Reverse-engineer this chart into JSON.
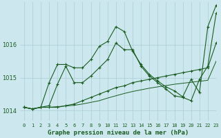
{
  "title": "Graphe pression niveau de la mer (hPa)",
  "background_color": "#cce8ee",
  "grid_color": "#aaccd4",
  "line_color": "#1a5c20",
  "xlim": [
    -0.5,
    23
  ],
  "ylim": [
    1013.7,
    1017.3
  ],
  "yticks": [
    1014,
    1015,
    1016
  ],
  "xtick_labels": [
    "0",
    "1",
    "2",
    "3",
    "4",
    "5",
    "6",
    "7",
    "8",
    "9",
    "10",
    "11",
    "12",
    "13",
    "14",
    "15",
    "16",
    "17",
    "18",
    "19",
    "20",
    "21",
    "22",
    "23"
  ],
  "series": [
    {
      "y": [
        1014.1,
        1014.05,
        1014.1,
        1014.15,
        1014.8,
        1015.35,
        1014.85,
        1014.85,
        1015.05,
        1015.3,
        1015.55,
        1016.05,
        1015.85,
        1015.85,
        1015.35,
        1015.05,
        1014.85,
        1014.65,
        1014.45,
        1014.4,
        1014.3,
        1014.95,
        1015.35,
        1016.95
      ],
      "marker": true,
      "linewidth": 0.8
    },
    {
      "y": [
        1014.1,
        1014.05,
        1014.1,
        1014.1,
        1014.1,
        1014.15,
        1014.2,
        1014.3,
        1014.4,
        1014.5,
        1014.6,
        1014.7,
        1014.75,
        1014.85,
        1014.9,
        1014.95,
        1015.0,
        1015.05,
        1015.1,
        1015.15,
        1015.2,
        1015.25,
        1015.3,
        1016.05
      ],
      "marker": true,
      "linewidth": 0.8
    },
    {
      "y": [
        1014.1,
        1014.05,
        1014.1,
        1014.1,
        1014.12,
        1014.14,
        1014.16,
        1014.2,
        1014.25,
        1014.3,
        1014.38,
        1014.45,
        1014.52,
        1014.58,
        1014.63,
        1014.68,
        1014.72,
        1014.76,
        1014.8,
        1014.83,
        1014.86,
        1014.89,
        1014.92,
        1015.5
      ],
      "marker": false,
      "linewidth": 0.7
    },
    {
      "y": [
        1014.1,
        1014.05,
        1014.1,
        1014.85,
        1015.4,
        1015.4,
        1015.3,
        1015.3,
        1015.55,
        1015.95,
        1016.1,
        1016.55,
        1016.4,
        1015.8,
        1015.4,
        1015.1,
        1014.9,
        1014.72,
        1014.6,
        1014.42,
        1014.95,
        1014.55,
        1016.55,
        1017.2
      ],
      "marker": true,
      "linewidth": 0.8
    }
  ]
}
